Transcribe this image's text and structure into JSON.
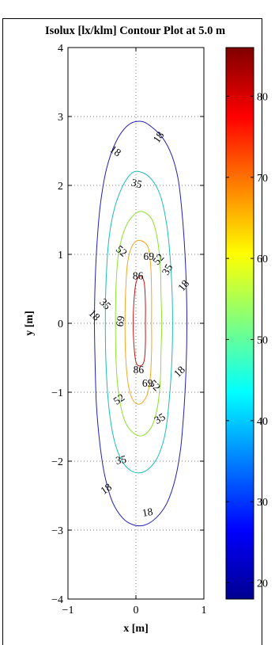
{
  "chart_data": {
    "type": "contour",
    "title": "Isolux [lx/klm] Contour Plot at 5.0 m",
    "xlabel": "x [m]",
    "ylabel": "y [m]",
    "xlim": [
      -1,
      1
    ],
    "ylim": [
      -4,
      4
    ],
    "xticks": [
      "−1",
      "0",
      "1"
    ],
    "yticks": [
      "−4",
      "−3",
      "−2",
      "−1",
      "0",
      "1",
      "2",
      "3",
      "4"
    ],
    "grid": "dotted",
    "colorbar": {
      "range": [
        18,
        86
      ],
      "ticks": [
        "20",
        "30",
        "40",
        "50",
        "60",
        "70",
        "80"
      ],
      "colormap": "jet"
    },
    "levels": [
      {
        "value": 18,
        "color": "#2020b8",
        "points": [
          [
            0.07,
            2.93
          ],
          [
            0.23,
            2.85
          ],
          [
            0.4,
            2.68
          ],
          [
            0.53,
            2.43
          ],
          [
            0.62,
            2.1
          ],
          [
            0.67,
            1.7
          ],
          [
            0.71,
            1.2
          ],
          [
            0.74,
            0.6
          ],
          [
            0.75,
            0.0
          ],
          [
            0.74,
            -0.6
          ],
          [
            0.71,
            -1.2
          ],
          [
            0.66,
            -1.8
          ],
          [
            0.58,
            -2.25
          ],
          [
            0.46,
            -2.6
          ],
          [
            0.3,
            -2.82
          ],
          [
            0.12,
            -2.93
          ],
          [
            -0.05,
            -2.92
          ],
          [
            -0.2,
            -2.82
          ],
          [
            -0.35,
            -2.58
          ],
          [
            -0.46,
            -2.2
          ],
          [
            -0.53,
            -1.75
          ],
          [
            -0.58,
            -1.2
          ],
          [
            -0.6,
            -0.6
          ],
          [
            -0.61,
            0.0
          ],
          [
            -0.6,
            0.6
          ],
          [
            -0.57,
            1.2
          ],
          [
            -0.52,
            1.75
          ],
          [
            -0.43,
            2.25
          ],
          [
            -0.3,
            2.62
          ],
          [
            -0.12,
            2.87
          ],
          [
            0.07,
            2.93
          ]
        ]
      },
      {
        "value": 35,
        "color": "#1bbcb8",
        "points": [
          [
            0.05,
            2.2
          ],
          [
            0.22,
            2.1
          ],
          [
            0.36,
            1.85
          ],
          [
            0.45,
            1.45
          ],
          [
            0.5,
            1.0
          ],
          [
            0.53,
            0.5
          ],
          [
            0.54,
            0.0
          ],
          [
            0.53,
            -0.5
          ],
          [
            0.5,
            -1.0
          ],
          [
            0.44,
            -1.55
          ],
          [
            0.34,
            -1.9
          ],
          [
            0.2,
            -2.1
          ],
          [
            0.05,
            -2.17
          ],
          [
            -0.1,
            -2.12
          ],
          [
            -0.23,
            -1.95
          ],
          [
            -0.33,
            -1.65
          ],
          [
            -0.4,
            -1.2
          ],
          [
            -0.44,
            -0.6
          ],
          [
            -0.45,
            0.0
          ],
          [
            -0.44,
            0.6
          ],
          [
            -0.4,
            1.2
          ],
          [
            -0.32,
            1.65
          ],
          [
            -0.2,
            1.98
          ],
          [
            -0.07,
            2.17
          ],
          [
            0.05,
            2.2
          ]
        ]
      },
      {
        "value": 52,
        "color": "#8ce033",
        "points": [
          [
            0.1,
            1.62
          ],
          [
            0.24,
            1.5
          ],
          [
            0.32,
            1.2
          ],
          [
            0.36,
            0.8
          ],
          [
            0.37,
            0.4
          ],
          [
            0.38,
            0.0
          ],
          [
            0.37,
            -0.4
          ],
          [
            0.36,
            -0.8
          ],
          [
            0.32,
            -1.2
          ],
          [
            0.23,
            -1.5
          ],
          [
            0.09,
            -1.63
          ],
          [
            -0.05,
            -1.58
          ],
          [
            -0.17,
            -1.4
          ],
          [
            -0.25,
            -1.05
          ],
          [
            -0.29,
            -0.6
          ],
          [
            -0.3,
            0.0
          ],
          [
            -0.29,
            0.6
          ],
          [
            -0.25,
            1.05
          ],
          [
            -0.15,
            1.4
          ],
          [
            -0.02,
            1.58
          ],
          [
            0.1,
            1.62
          ]
        ]
      },
      {
        "value": 69,
        "color": "#f5a522",
        "points": [
          [
            0.07,
            1.2
          ],
          [
            0.18,
            1.1
          ],
          [
            0.22,
            0.8
          ],
          [
            0.23,
            0.4
          ],
          [
            0.23,
            0.0
          ],
          [
            0.23,
            -0.4
          ],
          [
            0.21,
            -0.8
          ],
          [
            0.16,
            -1.05
          ],
          [
            0.06,
            -1.17
          ],
          [
            -0.04,
            -1.12
          ],
          [
            -0.11,
            -0.9
          ],
          [
            -0.15,
            -0.5
          ],
          [
            -0.16,
            0.0
          ],
          [
            -0.15,
            0.5
          ],
          [
            -0.12,
            0.9
          ],
          [
            -0.04,
            1.15
          ],
          [
            0.07,
            1.2
          ]
        ]
      },
      {
        "value": 86,
        "color": "#c41414",
        "points": [
          [
            0.06,
            0.68
          ],
          [
            0.12,
            0.6
          ],
          [
            0.14,
            0.3
          ],
          [
            0.14,
            0.0
          ],
          [
            0.14,
            -0.3
          ],
          [
            0.12,
            -0.55
          ],
          [
            0.06,
            -0.62
          ],
          [
            0.0,
            -0.56
          ],
          [
            -0.03,
            -0.3
          ],
          [
            -0.04,
            0.0
          ],
          [
            -0.03,
            0.3
          ],
          [
            0.0,
            0.58
          ],
          [
            0.06,
            0.68
          ]
        ]
      }
    ],
    "contour_labels": [
      {
        "text": "18",
        "x": 0.33,
        "y": 2.7,
        "angle": -55
      },
      {
        "text": "18",
        "x": -0.3,
        "y": 2.5,
        "angle": 35
      },
      {
        "text": "35",
        "x": 0.01,
        "y": 2.03,
        "angle": 15
      },
      {
        "text": "52",
        "x": -0.21,
        "y": 1.05,
        "angle": 40
      },
      {
        "text": "69",
        "x": 0.19,
        "y": 0.97,
        "angle": 0
      },
      {
        "text": "52",
        "x": 0.33,
        "y": 0.93,
        "angle": -50
      },
      {
        "text": "35",
        "x": 0.46,
        "y": 0.78,
        "angle": -60
      },
      {
        "text": "18",
        "x": 0.7,
        "y": 0.55,
        "angle": -50
      },
      {
        "text": "86",
        "x": 0.03,
        "y": 0.69,
        "angle": 0
      },
      {
        "text": "35",
        "x": -0.45,
        "y": 0.28,
        "angle": 45
      },
      {
        "text": "18",
        "x": -0.61,
        "y": 0.12,
        "angle": 45
      },
      {
        "text": "69",
        "x": -0.23,
        "y": 0.03,
        "angle": -80
      },
      {
        "text": "86",
        "x": 0.04,
        "y": -0.67,
        "angle": 0
      },
      {
        "text": "18",
        "x": 0.64,
        "y": -0.7,
        "angle": -45
      },
      {
        "text": "69",
        "x": 0.17,
        "y": -0.87,
        "angle": 0
      },
      {
        "text": "52",
        "x": 0.28,
        "y": -0.9,
        "angle": 45
      },
      {
        "text": "52",
        "x": -0.25,
        "y": -1.1,
        "angle": -35
      },
      {
        "text": "35",
        "x": 0.35,
        "y": -1.38,
        "angle": -30
      },
      {
        "text": "35",
        "x": -0.22,
        "y": -1.98,
        "angle": -10
      },
      {
        "text": "18",
        "x": -0.44,
        "y": -2.4,
        "angle": -35
      },
      {
        "text": "18",
        "x": 0.17,
        "y": -2.74,
        "angle": -10
      }
    ]
  }
}
